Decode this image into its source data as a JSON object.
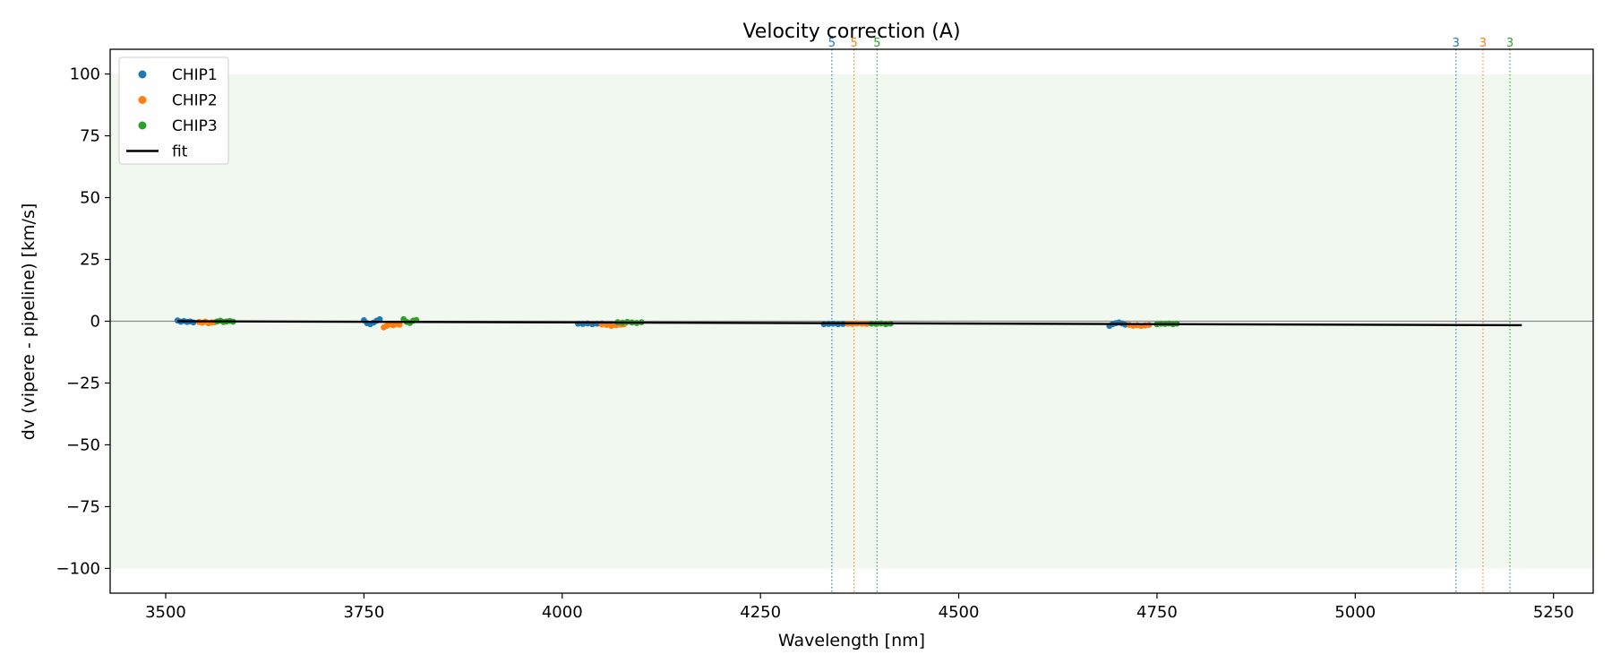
{
  "chart_data": {
    "type": "scatter",
    "title": "Velocity correction (A)",
    "xlabel": "Wavelength [nm]",
    "ylabel": "dv (vipere - pipeline) [km/s]",
    "xlim": [
      3430,
      5300
    ],
    "ylim": [
      -110,
      110
    ],
    "xticks": [
      3500,
      3750,
      4000,
      4250,
      4500,
      4750,
      5000,
      5250
    ],
    "xtick_labels": [
      "3500",
      "3750",
      "4000",
      "4250",
      "4500",
      "4750",
      "5000",
      "5250"
    ],
    "yticks": [
      100,
      75,
      50,
      25,
      0,
      -25,
      -50,
      -75,
      -100
    ],
    "ytick_labels": [
      "100",
      "75",
      "50",
      "25",
      "0",
      "−25",
      "−50",
      "−75",
      "−100"
    ],
    "shaded_band": {
      "y0": -100,
      "y1": 100,
      "color": "#2ca02c"
    },
    "zero_line": 0,
    "legend": {
      "placement": "top-left",
      "entries": [
        {
          "label": "CHIP1",
          "kind": "marker",
          "color": "#1f77b4"
        },
        {
          "label": "CHIP2",
          "kind": "marker",
          "color": "#ff7f0e"
        },
        {
          "label": "CHIP3",
          "kind": "marker",
          "color": "#2ca02c"
        },
        {
          "label": "fit",
          "kind": "line",
          "color": "#000000"
        }
      ]
    },
    "series": [
      {
        "name": "CHIP1",
        "color": "#1f77b4",
        "x": [
          3515,
          3519,
          3523,
          3527,
          3531,
          3535,
          3750,
          3754,
          3758,
          3762,
          3766,
          3770,
          4020,
          4026,
          4032,
          4038,
          4044,
          4050,
          4330,
          4336,
          4342,
          4348,
          4354,
          4690,
          4694,
          4698,
          4702,
          4706,
          4710
        ],
        "y": [
          0.3,
          -0.2,
          0.1,
          -0.3,
          -0.1,
          -0.5,
          0.4,
          -0.8,
          -1.2,
          -0.6,
          0.2,
          0.8,
          -1.0,
          -1.1,
          -0.9,
          -1.2,
          -1.0,
          -0.9,
          -1.2,
          -1.1,
          -1.0,
          -1.2,
          -1.1,
          -1.9,
          -1.2,
          -0.8,
          -0.5,
          -0.9,
          -1.4
        ]
      },
      {
        "name": "CHIP2",
        "color": "#ff7f0e",
        "x": [
          3542,
          3546,
          3550,
          3554,
          3558,
          3562,
          3775,
          3779,
          3783,
          3787,
          3791,
          3795,
          4050,
          4056,
          4062,
          4068,
          4074,
          4078,
          4360,
          4366,
          4372,
          4378,
          4384,
          4715,
          4720,
          4725,
          4730,
          4735,
          4740
        ],
        "y": [
          -0.3,
          -0.6,
          -0.2,
          -0.8,
          -0.5,
          -0.4,
          -2.5,
          -1.8,
          -1.2,
          -1.6,
          -1.1,
          -1.4,
          -1.3,
          -1.5,
          -1.9,
          -1.6,
          -1.4,
          -1.2,
          -1.0,
          -1.1,
          -0.9,
          -1.0,
          -1.1,
          -1.5,
          -1.8,
          -1.6,
          -1.9,
          -1.7,
          -1.5
        ]
      },
      {
        "name": "CHIP3",
        "color": "#2ca02c",
        "x": [
          3565,
          3569,
          3573,
          3577,
          3581,
          3585,
          3800,
          3804,
          3808,
          3812,
          3816,
          4070,
          4076,
          4082,
          4088,
          4094,
          4100,
          4390,
          4396,
          4402,
          4408,
          4414,
          4750,
          4755,
          4760,
          4765,
          4770,
          4775
        ],
        "y": [
          -0.1,
          0.2,
          -0.3,
          -0.1,
          0.1,
          -0.2,
          0.8,
          -0.3,
          -0.7,
          0.2,
          0.5,
          -0.4,
          -0.6,
          -0.3,
          -0.5,
          -0.7,
          -0.4,
          -1.0,
          -1.1,
          -0.9,
          -1.2,
          -1.0,
          -1.2,
          -1.0,
          -1.1,
          -0.9,
          -1.2,
          -1.0
        ]
      }
    ],
    "fit": {
      "name": "fit",
      "color": "#000000",
      "x": [
        3515,
        5210
      ],
      "y": [
        0.0,
        -1.6
      ]
    },
    "vlines": [
      {
        "x": 4340,
        "label": "5",
        "color": "#1f77b4"
      },
      {
        "x": 4368,
        "label": "5",
        "color": "#ff7f0e"
      },
      {
        "x": 4397,
        "label": "5",
        "color": "#2ca02c"
      },
      {
        "x": 5127,
        "label": "3",
        "color": "#1f77b4"
      },
      {
        "x": 5161,
        "label": "3",
        "color": "#ff7f0e"
      },
      {
        "x": 5195,
        "label": "3",
        "color": "#2ca02c"
      }
    ]
  }
}
